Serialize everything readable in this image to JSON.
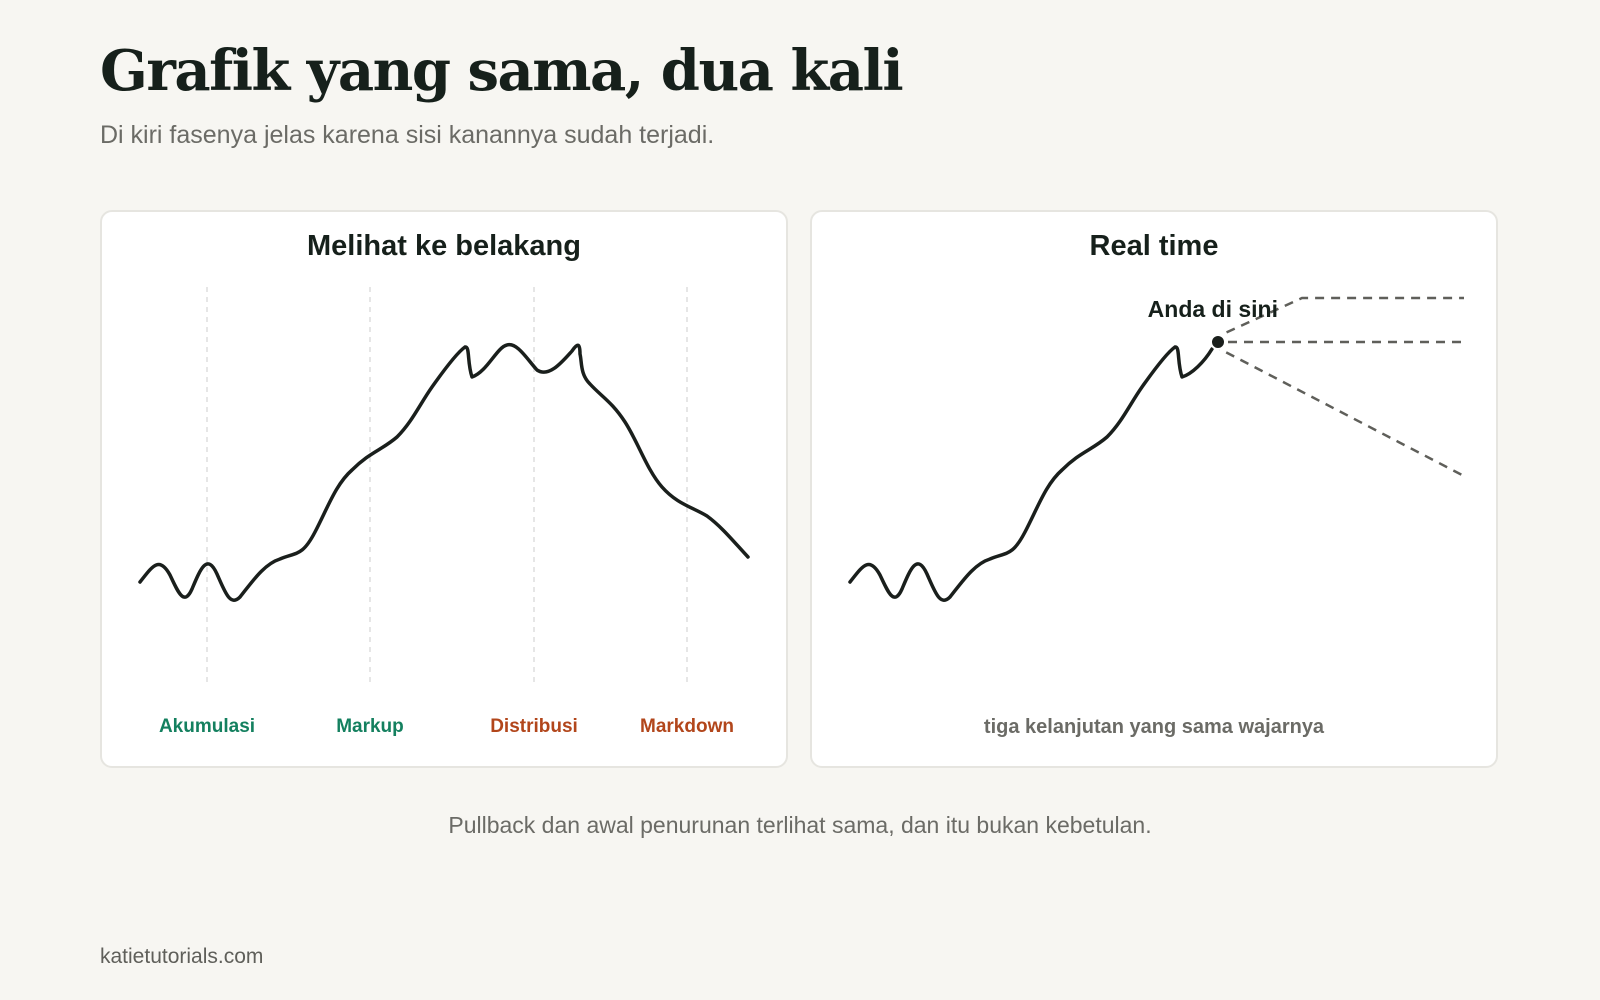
{
  "header": {
    "title": "Grafik yang sama, dua kali",
    "subtitle": "Di kiri fasenya jelas karena sisi kanannya sudah terjadi."
  },
  "panels": {
    "hindsight": {
      "title": "Melihat ke belakang",
      "phases": [
        {
          "label": "Akumulasi",
          "color": "#14805f"
        },
        {
          "label": "Markup",
          "color": "#14805f"
        },
        {
          "label": "Distribusi",
          "color": "#b2461b"
        },
        {
          "label": "Markdown",
          "color": "#b2461b"
        }
      ]
    },
    "realtime": {
      "title": "Real time",
      "marker_label": "Anda di sini",
      "continuations_label": "tiga kelanjutan yang sama wajarnya"
    }
  },
  "caption": "Pullback dan awal penurunan terlihat sama, dan itu bukan kebetulan.",
  "footer": "katietutorials.com",
  "colors": {
    "background": "#f7f6f2",
    "line": "#1a1f1c",
    "dashed": "#5f5f5a",
    "divider": "#dddddd",
    "green": "#14805f",
    "rust": "#b2461b"
  }
}
